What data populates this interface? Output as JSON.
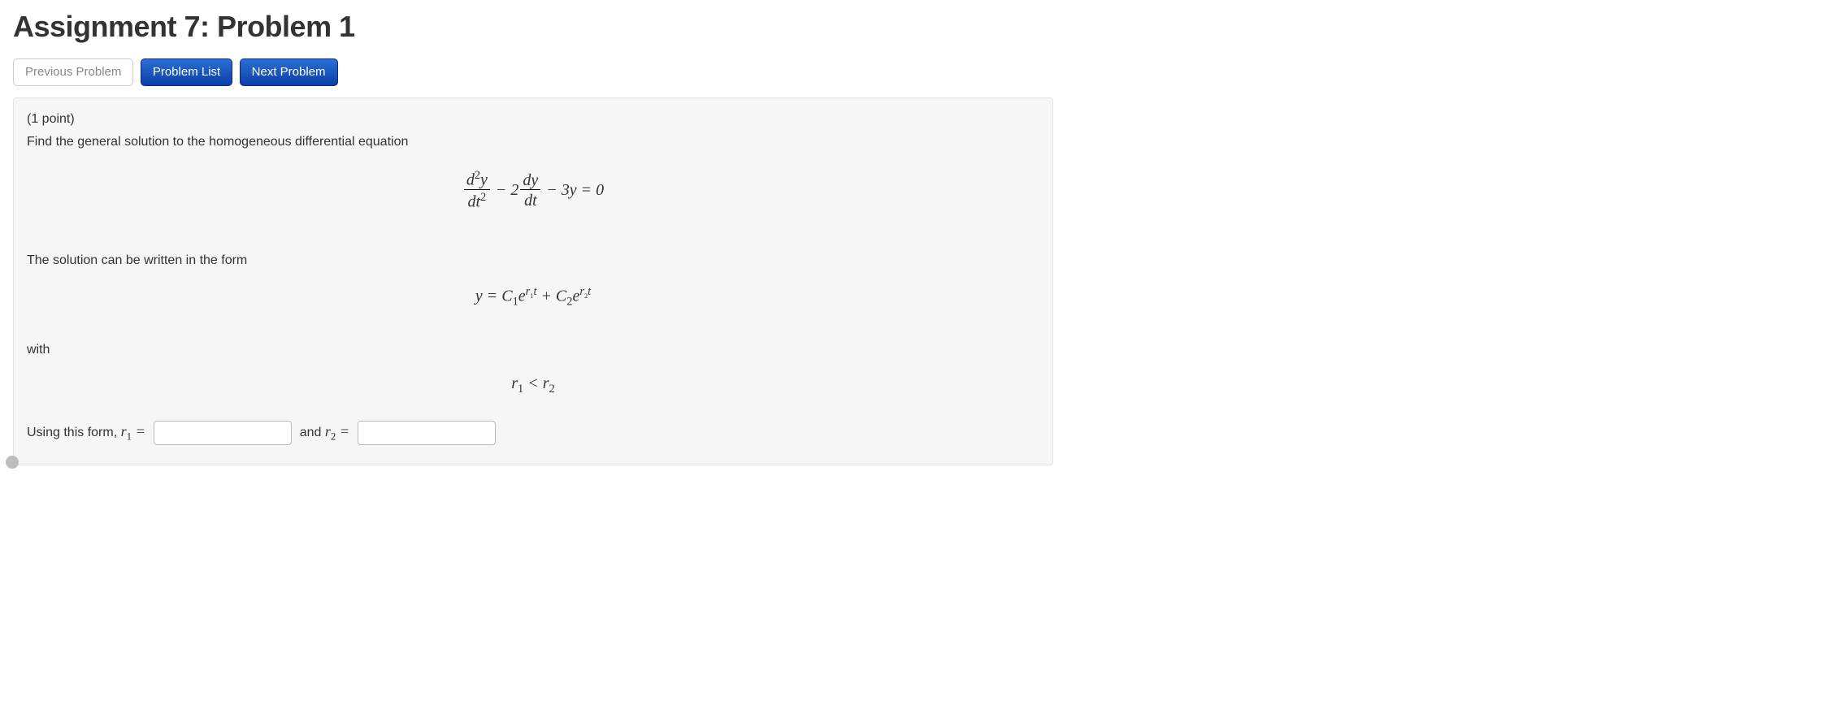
{
  "page": {
    "title": "Assignment 7: Problem 1"
  },
  "nav": {
    "prev": "Previous Problem",
    "list": "Problem List",
    "next": "Next Problem"
  },
  "problem": {
    "points_label": "(1 point)",
    "prompt": "Find the general solution to the homogeneous differential equation",
    "equation": {
      "frac1_num_html": "d<span class='sup up'>2</span>y",
      "frac1_den_html": "dt<span class='sup up'>2</span>",
      "mid1": " − 2",
      "frac2_num": "dy",
      "frac2_den": "dt",
      "tail": " − 3y = 0"
    },
    "solution_intro": "The solution can be written in the form",
    "solution_form_html": "y = C<span class='sub up'>1</span>e<span class='sup'><span class='expline'>r<span class='sub tiny up'>1</span>t</span></span> + C<span class='sub up'>2</span>e<span class='sup'><span class='expline'>r<span class='sub tiny up'>2</span>t</span></span>",
    "with_label": "with",
    "condition_html": "r<span class='sub up'>1</span> &lt; r<span class='sub up'>2</span>",
    "answer": {
      "lead": "Using this form, ",
      "r1_html": "r<span class='sub up'>1</span> =",
      "and": "and ",
      "r2_html": "r<span class='sub up'>2</span> =",
      "r1_value": "",
      "r2_value": ""
    }
  },
  "colors": {
    "btn_primary_top": "#2a6fd6",
    "btn_primary_bottom": "#0b3ea8",
    "panel_bg": "#f6f6f6",
    "panel_border": "#e4e4e4"
  }
}
